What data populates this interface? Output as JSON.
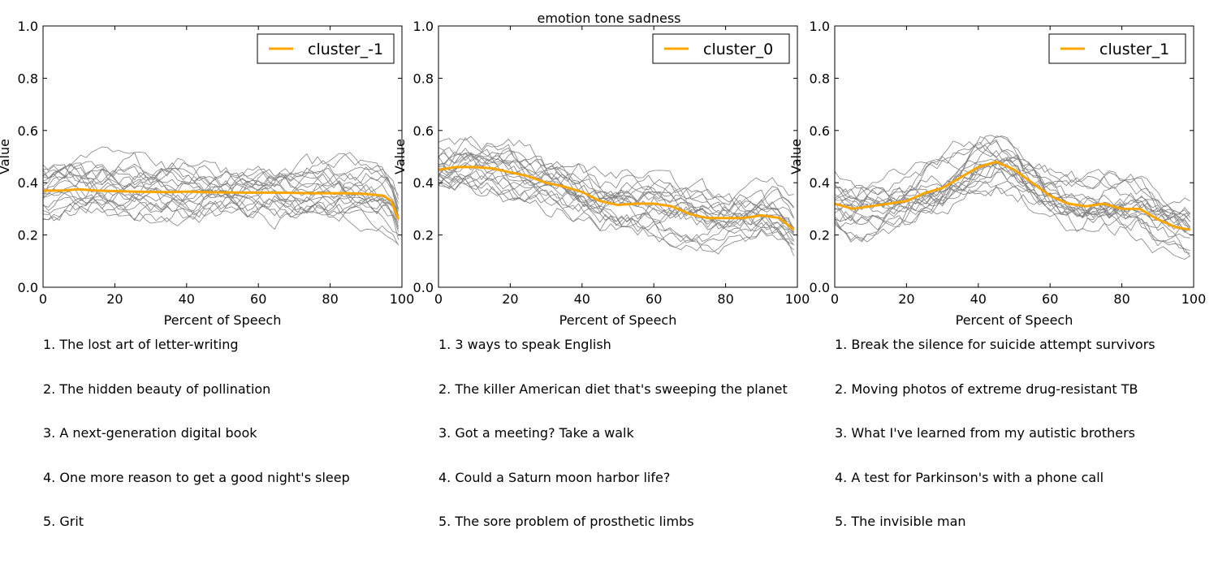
{
  "suptitle": "emotion tone sadness",
  "colors": {
    "mean_line": "#ffa500",
    "sample_line": "#808080"
  },
  "chart_data": [
    {
      "type": "line",
      "xlabel": "Percent of Speech",
      "ylabel": "Value",
      "xlim": [
        0,
        100
      ],
      "ylim": [
        0,
        1
      ],
      "xticks": [
        0,
        20,
        40,
        60,
        80,
        100
      ],
      "yticks": [
        0.0,
        0.2,
        0.4,
        0.6,
        0.8,
        1.0
      ],
      "xtick_labels": [
        "0",
        "20",
        "40",
        "60",
        "80",
        "100"
      ],
      "ytick_labels": [
        "0.0",
        "0.2",
        "0.4",
        "0.6",
        "0.8",
        "1.0"
      ],
      "grid": false,
      "legend": {
        "position": "top-right",
        "entries": [
          "cluster_-1"
        ]
      },
      "series": [
        {
          "name": "cluster_-1",
          "x": [
            0,
            5,
            10,
            15,
            20,
            25,
            30,
            35,
            40,
            45,
            50,
            55,
            60,
            65,
            70,
            75,
            80,
            85,
            90,
            95,
            97,
            99
          ],
          "values": [
            0.37,
            0.37,
            0.375,
            0.37,
            0.368,
            0.366,
            0.365,
            0.364,
            0.366,
            0.364,
            0.363,
            0.362,
            0.362,
            0.362,
            0.361,
            0.36,
            0.36,
            0.36,
            0.357,
            0.35,
            0.33,
            0.26
          ]
        }
      ],
      "background_lines": {
        "count": 20,
        "description_range": [
          0.0,
          0.7
        ]
      },
      "talks": [
        "1. The lost art of letter-writing",
        "2. The hidden beauty of pollination",
        "3. A next-generation digital book",
        "4. One more reason to get a good night's sleep",
        "5. Grit"
      ]
    },
    {
      "type": "line",
      "xlabel": "Percent of Speech",
      "ylabel": "Value",
      "xlim": [
        0,
        100
      ],
      "ylim": [
        0,
        1
      ],
      "xticks": [
        0,
        20,
        40,
        60,
        80,
        100
      ],
      "yticks": [
        0.0,
        0.2,
        0.4,
        0.6,
        0.8,
        1.0
      ],
      "xtick_labels": [
        "0",
        "20",
        "40",
        "60",
        "80",
        "100"
      ],
      "ytick_labels": [
        "0.0",
        "0.2",
        "0.4",
        "0.6",
        "0.8",
        "1.0"
      ],
      "grid": false,
      "legend": {
        "position": "top-right",
        "entries": [
          "cluster_0"
        ]
      },
      "series": [
        {
          "name": "cluster_0",
          "x": [
            0,
            5,
            10,
            15,
            20,
            25,
            30,
            35,
            40,
            45,
            50,
            55,
            60,
            65,
            70,
            75,
            80,
            85,
            90,
            95,
            99
          ],
          "values": [
            0.45,
            0.46,
            0.46,
            0.455,
            0.44,
            0.425,
            0.4,
            0.385,
            0.365,
            0.33,
            0.315,
            0.32,
            0.32,
            0.31,
            0.28,
            0.265,
            0.265,
            0.265,
            0.275,
            0.265,
            0.22
          ]
        }
      ],
      "background_lines": {
        "count": 20,
        "description_range": [
          0.0,
          0.7
        ]
      },
      "talks": [
        "1. 3 ways to speak English",
        "2. The killer American diet that's sweeping the planet",
        "3. Got a meeting? Take a walk",
        "4. Could a Saturn moon harbor life?",
        "5. The sore problem of prosthetic limbs"
      ]
    },
    {
      "type": "line",
      "xlabel": "Percent of Speech",
      "ylabel": "Value",
      "xlim": [
        0,
        100
      ],
      "ylim": [
        0,
        1
      ],
      "xticks": [
        0,
        20,
        40,
        60,
        80,
        100
      ],
      "yticks": [
        0.0,
        0.2,
        0.4,
        0.6,
        0.8,
        1.0
      ],
      "xtick_labels": [
        "0",
        "20",
        "40",
        "60",
        "80",
        "100"
      ],
      "ytick_labels": [
        "0.0",
        "0.2",
        "0.4",
        "0.6",
        "0.8",
        "1.0"
      ],
      "grid": false,
      "legend": {
        "position": "top-right",
        "entries": [
          "cluster_1"
        ]
      },
      "series": [
        {
          "name": "cluster_1",
          "x": [
            0,
            5,
            10,
            15,
            20,
            25,
            30,
            35,
            40,
            45,
            50,
            55,
            60,
            65,
            70,
            75,
            80,
            85,
            90,
            95,
            99
          ],
          "values": [
            0.32,
            0.3,
            0.31,
            0.32,
            0.33,
            0.36,
            0.38,
            0.42,
            0.46,
            0.48,
            0.45,
            0.4,
            0.35,
            0.32,
            0.31,
            0.32,
            0.3,
            0.3,
            0.26,
            0.23,
            0.22
          ]
        }
      ],
      "background_lines": {
        "count": 20,
        "description_range": [
          0.0,
          0.7
        ]
      },
      "talks": [
        "1. Break the silence for suicide attempt survivors",
        "2. Moving photos of extreme drug-resistant TB",
        "3. What I've learned from my autistic brothers",
        "4. A test for Parkinson's with a phone call",
        "5. The invisible man"
      ]
    }
  ]
}
